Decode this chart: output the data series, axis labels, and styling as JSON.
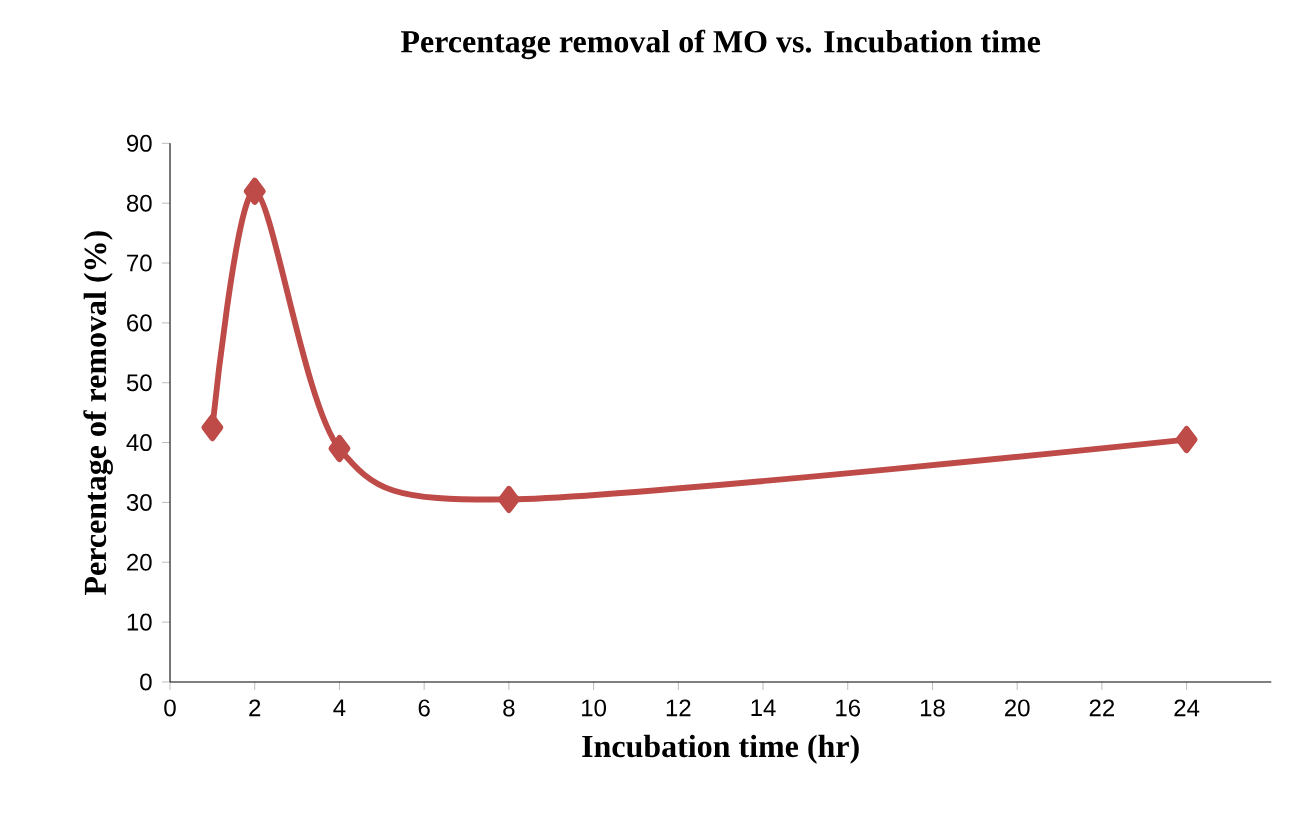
{
  "chart_data": {
    "type": "line",
    "title": "Percentage removal of MO vs.  Incubation time",
    "xlabel": "Incubation time (hr)",
    "ylabel": "Percentage of removal (%)",
    "x": [
      1,
      2,
      4,
      8,
      24
    ],
    "series": [
      {
        "color": "#be4b48",
        "values": [
          42.5,
          82,
          39,
          30.5,
          40.5
        ]
      }
    ],
    "xlim": [
      0,
      26
    ],
    "xticks": [
      0,
      2,
      4,
      6,
      8,
      10,
      12,
      14,
      16,
      18,
      20,
      22,
      24
    ],
    "ylim": [
      0,
      90
    ],
    "yticks": [
      0,
      10,
      20,
      30,
      40,
      50,
      60,
      70,
      80,
      90
    ],
    "marker": "diamond",
    "line_style": "solid"
  }
}
